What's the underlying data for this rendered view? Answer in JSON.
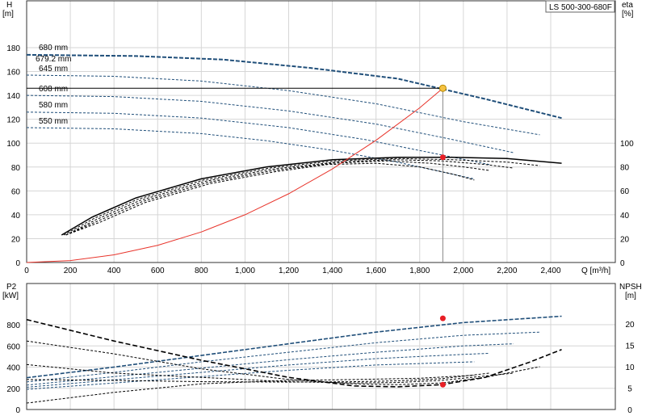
{
  "chart_data": [
    {
      "type": "line",
      "title": "LS 500-300-680F",
      "ylabel_left": "H",
      "ylabel_left_unit": "[m]",
      "ylabel_right": "eta",
      "ylabel_right_unit": "[%]",
      "xlabel": "Q [m³/h]",
      "xlim": [
        0,
        2500
      ],
      "ylim_left": [
        0,
        200
      ],
      "xticks": [
        "0",
        "200",
        "400",
        "600",
        "800",
        "1,000",
        "1,200",
        "1,400",
        "1,600",
        "1,800",
        "2,000",
        "2,200",
        "2,400"
      ],
      "yticks_left": [
        "0",
        "20",
        "40",
        "60",
        "80",
        "100",
        "120",
        "140",
        "160",
        "180"
      ],
      "yticks_right": [
        "0",
        "20",
        "40",
        "60",
        "80",
        "100"
      ],
      "impeller_labels": [
        "680 mm",
        "679.2 mm",
        "645 mm",
        "608 mm",
        "580 mm",
        "550 mm"
      ],
      "head_curves": [
        {
          "diameter": "680 mm",
          "x": [
            0,
            500,
            900,
            1300,
            1700,
            2100,
            2450
          ],
          "y": [
            174,
            173,
            170,
            163,
            154,
            137,
            121
          ]
        },
        {
          "diameter": "645 mm",
          "x": [
            0,
            400,
            800,
            1200,
            1600,
            2000,
            2350
          ],
          "y": [
            157,
            156,
            152,
            144,
            133,
            118,
            107
          ]
        },
        {
          "diameter": "608 mm",
          "x": [
            0,
            400,
            800,
            1200,
            1600,
            1950,
            2230
          ],
          "y": [
            140,
            139,
            135,
            127,
            116,
            103,
            92
          ]
        },
        {
          "diameter": "580 mm",
          "x": [
            0,
            400,
            800,
            1200,
            1550,
            1850,
            2120
          ],
          "y": [
            126,
            125,
            121,
            113,
            103,
            92,
            82
          ]
        },
        {
          "diameter": "550 mm",
          "x": [
            0,
            400,
            800,
            1100,
            1400,
            1700,
            2050
          ],
          "y": [
            113,
            112,
            108,
            102,
            94,
            84,
            70
          ]
        }
      ],
      "efficiency_curves": [
        {
          "diameter": "680 mm",
          "x": [
            160,
            300,
            500,
            800,
            1100,
            1400,
            1700,
            1950,
            2200,
            2450
          ],
          "y": [
            23,
            38,
            54,
            70,
            80,
            86,
            88,
            88,
            87,
            83
          ]
        },
        {
          "diameter": "645 mm",
          "x": [
            170,
            310,
            510,
            810,
            1110,
            1410,
            1700,
            1950,
            2200,
            2350
          ],
          "y": [
            23,
            37,
            53,
            69,
            79,
            85,
            87,
            86,
            84,
            81
          ]
        },
        {
          "diameter": "608 mm",
          "x": [
            180,
            320,
            520,
            820,
            1120,
            1420,
            1680,
            1900,
            2100,
            2230
          ],
          "y": [
            23,
            36,
            52,
            68,
            78,
            84,
            86,
            85,
            82,
            79
          ]
        },
        {
          "diameter": "580 mm",
          "x": [
            180,
            330,
            530,
            830,
            1130,
            1400,
            1650,
            1850,
            2000,
            2120
          ],
          "y": [
            23,
            35,
            51,
            67,
            77,
            83,
            85,
            83,
            80,
            77
          ]
        },
        {
          "diameter": "550 mm",
          "x": [
            180,
            340,
            540,
            840,
            1140,
            1380,
            1600,
            1800,
            1950,
            2050
          ],
          "y": [
            23,
            34,
            50,
            66,
            76,
            82,
            83,
            80,
            74,
            69
          ]
        }
      ],
      "system_curve": {
        "x": [
          0,
          200,
          400,
          600,
          800,
          1000,
          1200,
          1400,
          1600,
          1800,
          1906
        ],
        "y": [
          0,
          1.6,
          6.4,
          14.4,
          25.6,
          40,
          57.6,
          78.4,
          102.4,
          129.6,
          146
        ]
      },
      "operating_point": {
        "q": 1906,
        "h": 146,
        "eta": 88
      }
    },
    {
      "type": "line",
      "ylabel_left": "P2",
      "ylabel_left_unit": "[kW]",
      "ylabel_right": "NPSH",
      "ylabel_right_unit": "[m]",
      "xlim": [
        0,
        2500
      ],
      "ylim_left": [
        0,
        1000
      ],
      "ylim_right": [
        0,
        25
      ],
      "yticks_left": [
        "0",
        "200",
        "400",
        "600",
        "800"
      ],
      "yticks_right": [
        "0",
        "5",
        "10",
        "15",
        "20"
      ],
      "power_curves": [
        {
          "diameter": "680 mm",
          "x": [
            0,
            400,
            800,
            1200,
            1600,
            2000,
            2450
          ],
          "y": [
            300,
            400,
            510,
            620,
            730,
            820,
            880
          ]
        },
        {
          "diameter": "645 mm",
          "x": [
            0,
            400,
            800,
            1200,
            1600,
            2000,
            2350
          ],
          "y": [
            260,
            350,
            450,
            540,
            630,
            700,
            730
          ]
        },
        {
          "diameter": "608 mm",
          "x": [
            0,
            400,
            800,
            1200,
            1600,
            2000,
            2230
          ],
          "y": [
            230,
            310,
            390,
            470,
            540,
            600,
            620
          ]
        },
        {
          "diameter": "580 mm",
          "x": [
            0,
            400,
            800,
            1200,
            1600,
            2000,
            2120
          ],
          "y": [
            210,
            280,
            350,
            420,
            480,
            520,
            530
          ]
        },
        {
          "diameter": "550 mm",
          "x": [
            0,
            400,
            800,
            1200,
            1600,
            2050
          ],
          "y": [
            190,
            250,
            310,
            370,
            420,
            450
          ]
        }
      ],
      "npsh_curves": [
        {
          "diameter": "680 mm",
          "x": [
            0,
            400,
            800,
            1200,
            1500,
            1700,
            1900,
            2100,
            2300,
            2450
          ],
          "y": [
            21,
            16,
            11.5,
            7.5,
            5.5,
            5.3,
            5.8,
            7.5,
            11,
            14
          ]
        },
        {
          "diameter": "645 mm",
          "x": [
            0,
            400,
            800,
            1200,
            1500,
            1700,
            1900,
            2100,
            2350
          ],
          "y": [
            16,
            13,
            9.5,
            7,
            6,
            5.8,
            6.2,
            7.5,
            10
          ]
        },
        {
          "diameter": "608 mm",
          "x": [
            0,
            400,
            800,
            1200,
            1500,
            1700,
            1900,
            2230
          ],
          "y": [
            10.5,
            8.5,
            7.5,
            6.5,
            6.2,
            6.3,
            6.8,
            8.5
          ]
        },
        {
          "diameter": "580 mm",
          "x": [
            0,
            400,
            800,
            1200,
            1500,
            1700,
            1900,
            2120
          ],
          "y": [
            7,
            6.8,
            6.5,
            6.4,
            6.5,
            6.7,
            7.2,
            8.5
          ]
        },
        {
          "diameter": "550 mm",
          "x": [
            0,
            400,
            800,
            1200,
            1500,
            1800,
            2050
          ],
          "y": [
            1.5,
            4,
            6,
            6.8,
            7,
            7.3,
            8
          ]
        }
      ],
      "operating_point_power": {
        "q": 1906,
        "p2": 860
      },
      "operating_point_npsh": {
        "q": 1906,
        "npsh": 5.8
      }
    }
  ],
  "colors": {
    "head": "#1f4e79",
    "eff": "#000000",
    "system": "#e8342b",
    "op_head": "#f5c242",
    "op_red": "#e81e25",
    "grid": "#d6d6d6"
  }
}
